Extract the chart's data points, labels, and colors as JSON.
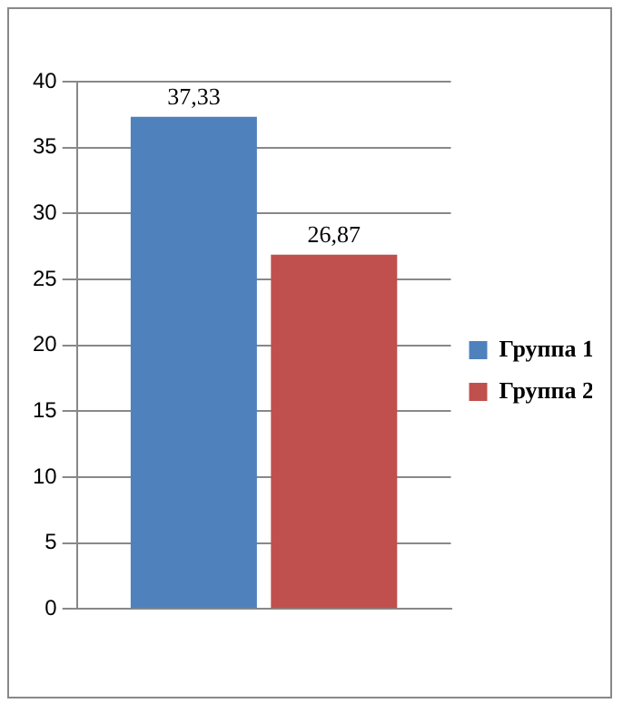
{
  "chart_data": {
    "type": "bar",
    "categories": [
      null
    ],
    "series": [
      {
        "name": "Группа 1",
        "color": "#4f81bd",
        "values": [
          37.33
        ],
        "value_labels": [
          "37,33"
        ]
      },
      {
        "name": "Группа 2",
        "color": "#c0504d",
        "values": [
          26.87
        ],
        "value_labels": [
          "26,87"
        ]
      }
    ],
    "ylim": [
      0,
      40
    ],
    "yticks": [
      0,
      5,
      10,
      15,
      20,
      25,
      30,
      35,
      40
    ],
    "grid": "y",
    "legend": "right"
  }
}
